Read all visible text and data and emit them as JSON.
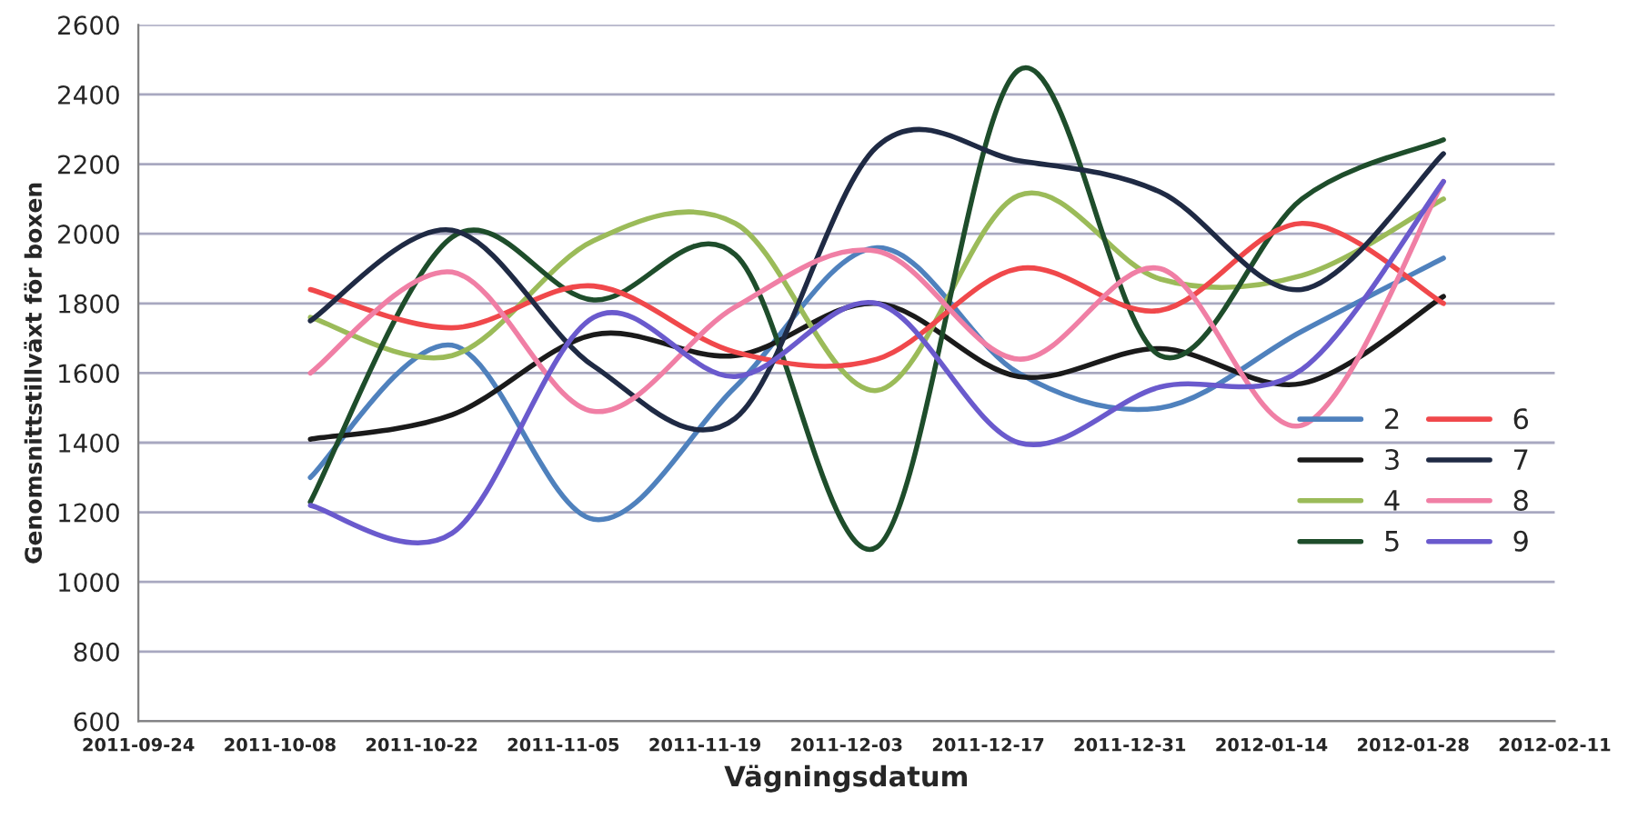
{
  "chart_data": {
    "type": "line",
    "xlabel": "Vägningsdatum",
    "ylabel": "Genomsnittstillväxt för boxen",
    "x": [
      "2011-10-11",
      "2011-10-25",
      "2011-11-08",
      "2011-11-22",
      "2011-12-06",
      "2011-12-20",
      "2012-01-03",
      "2012-01-17",
      "2012-01-31"
    ],
    "series": [
      {
        "name": "2",
        "color": "#4f81bd",
        "values": [
          1300,
          1680,
          1180,
          1560,
          1960,
          1600,
          1500,
          1720,
          1930
        ]
      },
      {
        "name": "3",
        "color": "#1a1a1a",
        "values": [
          1410,
          1480,
          1710,
          1650,
          1800,
          1590,
          1670,
          1570,
          1820
        ]
      },
      {
        "name": "4",
        "color": "#9bbb59",
        "values": [
          1760,
          1650,
          1980,
          2030,
          1550,
          2110,
          1870,
          1880,
          2100
        ]
      },
      {
        "name": "5",
        "color": "#1e4d2b",
        "values": [
          1230,
          1990,
          1810,
          1940,
          1100,
          2470,
          1650,
          2100,
          2270
        ]
      },
      {
        "name": "6",
        "color": "#f0484b",
        "values": [
          1840,
          1730,
          1850,
          1660,
          1640,
          1900,
          1780,
          2030,
          1800
        ]
      },
      {
        "name": "7",
        "color": "#1f2a44",
        "values": [
          1750,
          2010,
          1620,
          1470,
          2250,
          2210,
          2120,
          1840,
          2230
        ]
      },
      {
        "name": "8",
        "color": "#f07fa5",
        "values": [
          1600,
          1890,
          1490,
          1790,
          1950,
          1640,
          1900,
          1450,
          2150
        ]
      },
      {
        "name": "9",
        "color": "#6a5acd",
        "values": [
          1220,
          1140,
          1760,
          1590,
          1800,
          1400,
          1560,
          1610,
          2150
        ]
      }
    ],
    "xlim": [
      "2011-09-24",
      "2012-02-11"
    ],
    "xticks": [
      "2011-09-24",
      "2011-10-08",
      "2011-10-22",
      "2011-11-05",
      "2011-11-19",
      "2011-12-03",
      "2011-12-17",
      "2011-12-31",
      "2012-01-14",
      "2012-01-28",
      "2012-02-11"
    ],
    "ylim": [
      600,
      2600
    ],
    "yticks": [
      600,
      800,
      1000,
      1200,
      1400,
      1600,
      1800,
      2000,
      2200,
      2400,
      2600
    ],
    "grid": "y",
    "legend": "bottom right",
    "marker": "none",
    "line_style": "solid"
  }
}
